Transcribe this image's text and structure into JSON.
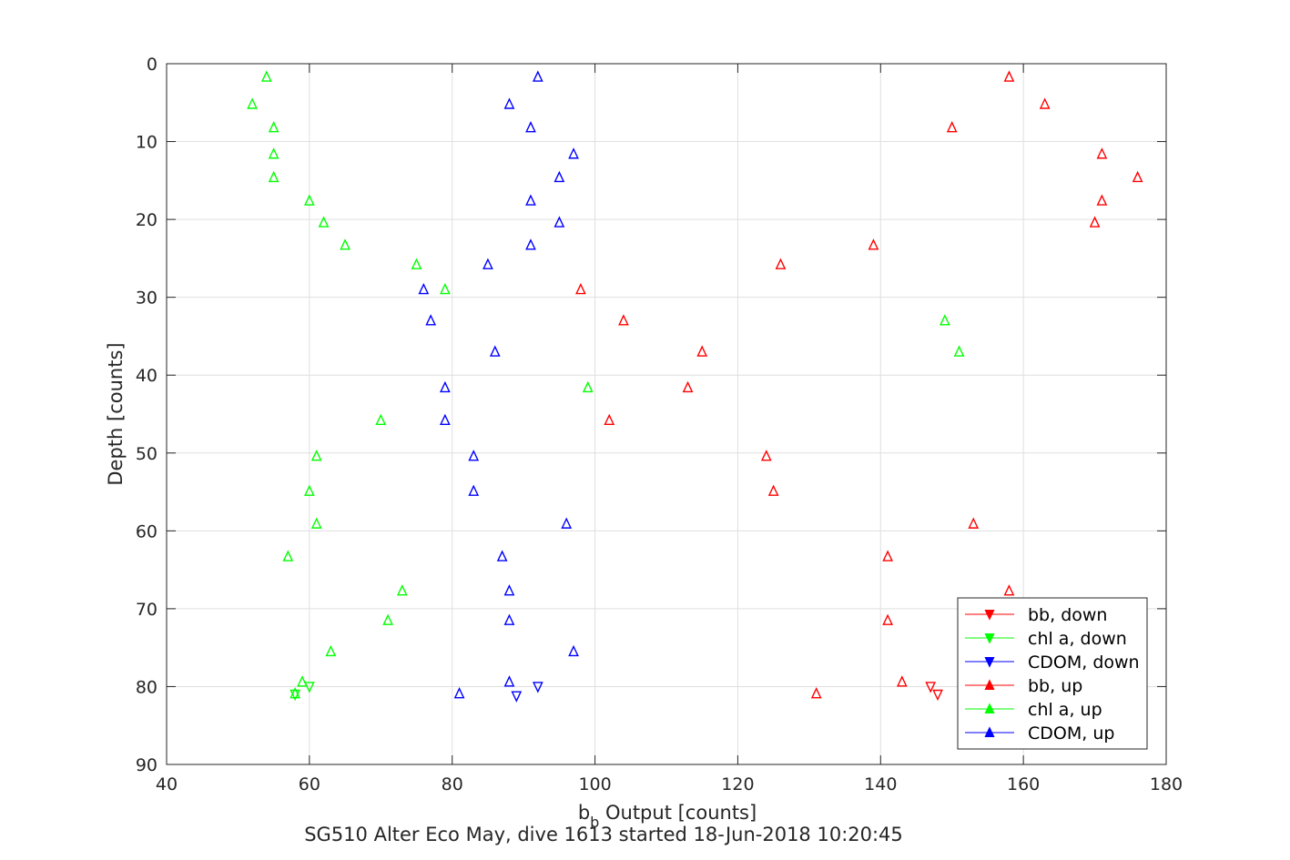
{
  "chart_data": {
    "type": "scatter",
    "xlabel_main": "b",
    "xlabel_sub": "b",
    "xlabel_rest": " Output [counts]",
    "ylabel": "Depth [counts]",
    "caption": "SG510 Alter Eco May, dive 1613 started 18-Jun-2018 10:20:45",
    "xlim": [
      40,
      180
    ],
    "ylim": [
      0,
      90
    ],
    "y_reversed": true,
    "grid": true,
    "legend_position": "bottom-right",
    "x_ticks": [
      "40",
      "60",
      "80",
      "100",
      "120",
      "140",
      "160",
      "180"
    ],
    "y_ticks": [
      "0",
      "10",
      "20",
      "30",
      "40",
      "50",
      "60",
      "70",
      "80",
      "90"
    ],
    "series": [
      {
        "name": "bb, down",
        "color": "#ff0000",
        "marker": "triangle-down",
        "points": [
          [
            147,
            80
          ],
          [
            148,
            81
          ]
        ]
      },
      {
        "name": "chl a, down",
        "color": "#00ff00",
        "marker": "triangle-down",
        "points": [
          [
            60,
            80
          ],
          [
            58,
            81
          ]
        ]
      },
      {
        "name": "CDOM, down",
        "color": "#0000ff",
        "marker": "triangle-down",
        "points": [
          [
            92,
            80
          ],
          [
            89,
            81.2
          ]
        ]
      },
      {
        "name": "bb, up",
        "color": "#ff0000",
        "marker": "triangle-up",
        "points": [
          [
            158,
            1.7
          ],
          [
            163,
            5.2
          ],
          [
            150,
            8.2
          ],
          [
            171,
            11.6
          ],
          [
            176,
            14.6
          ],
          [
            171,
            17.6
          ],
          [
            170,
            20.4
          ],
          [
            139,
            23.3
          ],
          [
            126,
            25.8
          ],
          [
            98,
            29
          ],
          [
            104,
            33
          ],
          [
            115,
            37
          ],
          [
            113,
            41.6
          ],
          [
            102,
            45.8
          ],
          [
            124,
            50.4
          ],
          [
            125,
            54.9
          ],
          [
            153,
            59.1
          ],
          [
            141,
            63.3
          ],
          [
            158,
            67.7
          ],
          [
            141,
            71.5
          ],
          [
            143,
            79.4
          ],
          [
            131,
            80.9
          ]
        ]
      },
      {
        "name": "chl a, up",
        "color": "#00ff00",
        "marker": "triangle-up",
        "points": [
          [
            54,
            1.7
          ],
          [
            52,
            5.2
          ],
          [
            55,
            8.2
          ],
          [
            55,
            11.6
          ],
          [
            55,
            14.6
          ],
          [
            60,
            17.6
          ],
          [
            62,
            20.4
          ],
          [
            65,
            23.3
          ],
          [
            75,
            25.8
          ],
          [
            79,
            29
          ],
          [
            149,
            33
          ],
          [
            151,
            37
          ],
          [
            99,
            41.6
          ],
          [
            70,
            45.8
          ],
          [
            61,
            50.4
          ],
          [
            60,
            54.9
          ],
          [
            61,
            59.1
          ],
          [
            57,
            63.3
          ],
          [
            73,
            67.7
          ],
          [
            71,
            71.5
          ],
          [
            63,
            75.5
          ],
          [
            59,
            79.4
          ],
          [
            58,
            80.9
          ]
        ]
      },
      {
        "name": "CDOM, up",
        "color": "#0000ff",
        "marker": "triangle-up",
        "points": [
          [
            92,
            1.7
          ],
          [
            88,
            5.2
          ],
          [
            91,
            8.2
          ],
          [
            97,
            11.6
          ],
          [
            95,
            14.6
          ],
          [
            91,
            17.6
          ],
          [
            95,
            20.4
          ],
          [
            91,
            23.3
          ],
          [
            85,
            25.8
          ],
          [
            76,
            29
          ],
          [
            77,
            33
          ],
          [
            86,
            37
          ],
          [
            79,
            41.6
          ],
          [
            79,
            45.8
          ],
          [
            83,
            50.4
          ],
          [
            83,
            54.9
          ],
          [
            96,
            59.1
          ],
          [
            87,
            63.3
          ],
          [
            88,
            67.7
          ],
          [
            88,
            71.5
          ],
          [
            97,
            75.5
          ],
          [
            88,
            79.4
          ],
          [
            81,
            80.9
          ]
        ]
      }
    ]
  }
}
